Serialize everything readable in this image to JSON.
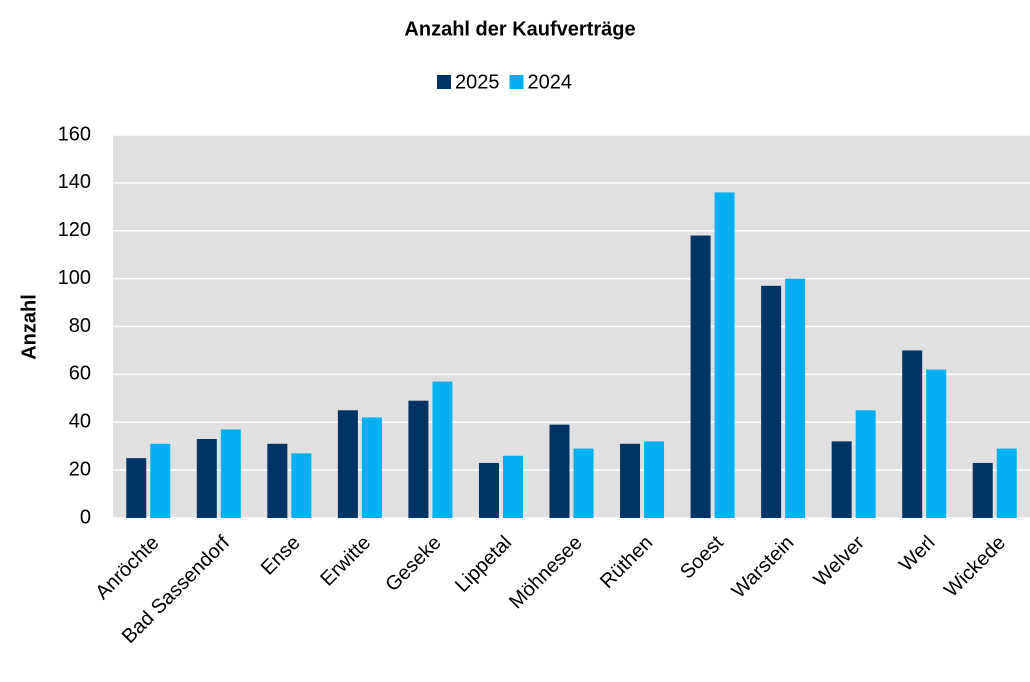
{
  "chart_data": {
    "type": "bar",
    "title": "Anzahl der Kaufverträge",
    "y_label": "Anzahl",
    "categories": [
      "Anröchte",
      "Bad Sassendorf",
      "Ense",
      "Erwitte",
      "Geseke",
      "Lippetal",
      "Möhnesee",
      "Rüthen",
      "Soest",
      "Warstein",
      "Welver",
      "Werl",
      "Wickede"
    ],
    "series": [
      {
        "name": "2025",
        "color": "#003366",
        "values": [
          25,
          33,
          31,
          45,
          49,
          23,
          39,
          31,
          118,
          97,
          32,
          70,
          23
        ]
      },
      {
        "name": "2024",
        "color": "#00b0f0",
        "values": [
          31,
          37,
          27,
          42,
          57,
          26,
          29,
          32,
          136,
          100,
          45,
          62,
          29
        ]
      }
    ],
    "ylim": [
      0,
      160
    ],
    "yticks": [
      0,
      20,
      40,
      60,
      80,
      100,
      120,
      140,
      160
    ],
    "grid": true,
    "legend": "top"
  }
}
